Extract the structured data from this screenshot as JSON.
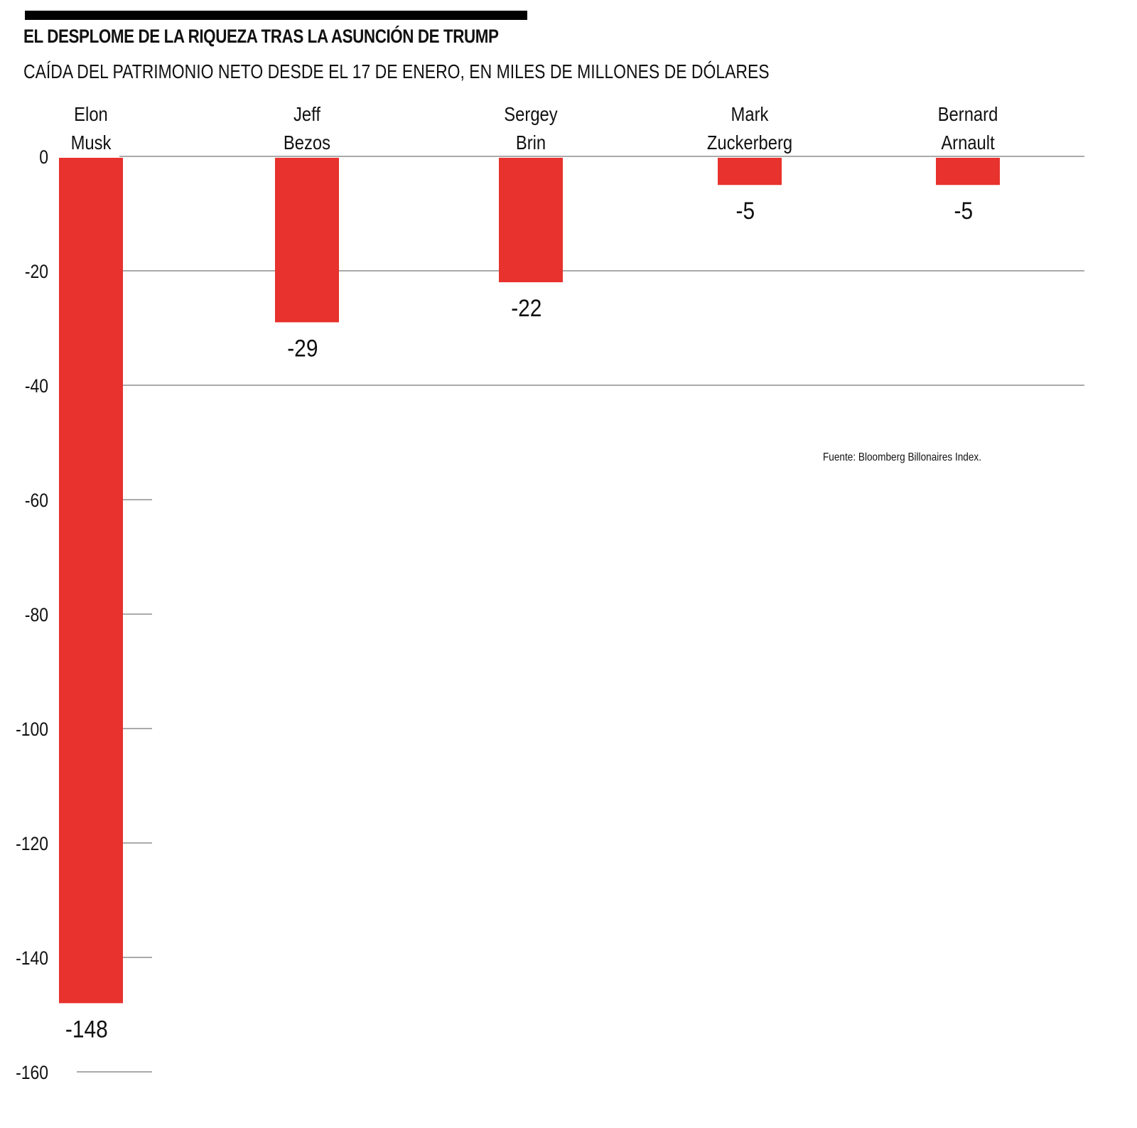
{
  "title": "EL DESPLOME DE LA RIQUEZA TRAS LA ASUNCIÓN DE TRUMP",
  "subtitle": "CAÍDA DEL PATRIMONIO NETO DESDE EL 17 DE ENERO, EN MILES DE MILLONES DE DÓLARES",
  "source": "Fuente: Bloomberg Billonaires Index.",
  "colors": {
    "bar": "#e8322d",
    "grid": "#555555",
    "text": "#111111"
  },
  "chart_data": {
    "type": "bar",
    "categories": [
      [
        "Elon",
        "Musk"
      ],
      [
        "Jeff",
        "Bezos"
      ],
      [
        "Sergey",
        "Brin"
      ],
      [
        "Mark",
        "Zuckerberg"
      ],
      [
        "Bernard",
        "Arnault"
      ]
    ],
    "values": [
      -148,
      -29,
      -22,
      -5,
      -5
    ],
    "data_labels": [
      "-148",
      "-29",
      "-22",
      "-5",
      "-5"
    ],
    "yticks": [
      0,
      -20,
      -40,
      -60,
      -80,
      -100,
      -120,
      -140,
      -160
    ],
    "ytick_labels": [
      "0",
      "-20",
      "-40",
      "-60",
      "-80",
      "-100",
      "-120",
      "-140",
      "-160"
    ],
    "ylim": [
      -160,
      0
    ],
    "grid": true,
    "xlabel": "",
    "ylabel": ""
  }
}
